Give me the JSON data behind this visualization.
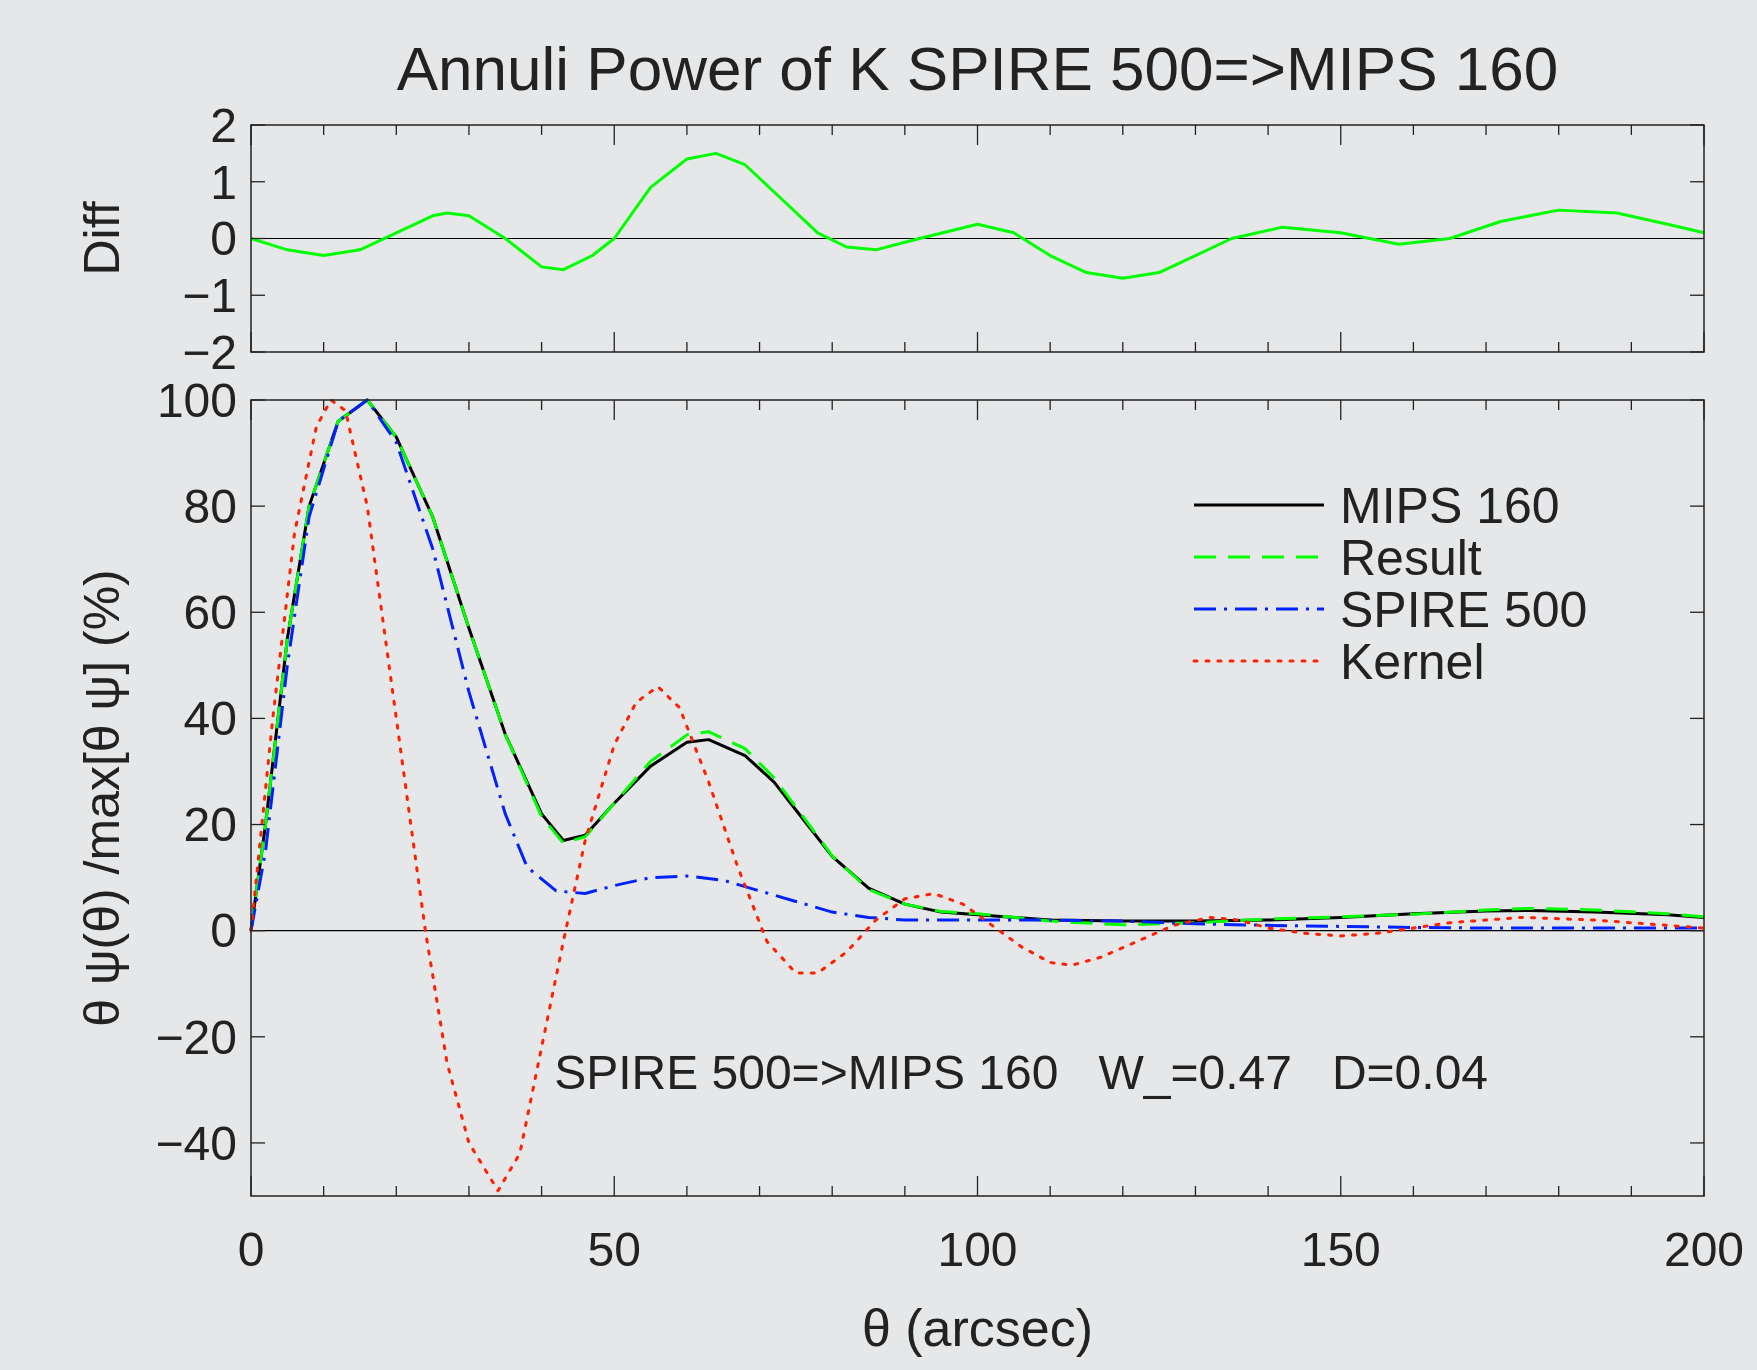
{
  "chart_data": [
    {
      "type": "line",
      "title": "Annuli Power of K SPIRE 500=>MIPS 160",
      "ylabel": "Diff",
      "xlim": [
        0,
        200
      ],
      "xticks": [
        0,
        {
          "value": 10,
          "label": null
        },
        {
          "value": 20,
          "label": null
        },
        {
          "value": 30,
          "label": null
        },
        {
          "value": 40,
          "label": null
        },
        50,
        {
          "value": 60,
          "label": null
        },
        {
          "value": 70,
          "label": null
        },
        {
          "value": 80,
          "label": null
        },
        {
          "value": 90,
          "label": null
        },
        100,
        {
          "value": 110,
          "label": null
        },
        {
          "value": 120,
          "label": null
        },
        {
          "value": 130,
          "label": null
        },
        {
          "value": 140,
          "label": null
        },
        150,
        {
          "value": 160,
          "label": null
        },
        {
          "value": 170,
          "label": null
        },
        {
          "value": 180,
          "label": null
        },
        {
          "value": 190,
          "label": null
        },
        200
      ],
      "ylim": [
        -2,
        2
      ],
      "yticks": [
        {
          "value": -2,
          "label": "−2"
        },
        {
          "value": -1,
          "label": "−1"
        },
        0,
        1,
        2
      ],
      "tick_labels": "y",
      "ref_lines": [
        {
          "axis": "y",
          "value": 0,
          "color": "#000000"
        }
      ],
      "series": [
        {
          "color": "#00ff00",
          "line_style": "solid",
          "x": [
            0,
            5,
            10,
            15,
            20,
            25,
            27,
            30,
            35,
            40,
            43,
            47,
            50,
            55,
            60,
            64,
            68,
            73,
            78,
            82,
            86,
            92,
            100,
            105,
            110,
            115,
            120,
            125,
            130,
            135,
            142,
            150,
            158,
            165,
            172,
            180,
            188,
            195,
            200
          ],
          "values": [
            0,
            -0.2,
            -0.3,
            -0.2,
            0.1,
            0.4,
            0.45,
            0.4,
            0,
            -0.5,
            -0.55,
            -0.3,
            0,
            0.9,
            1.4,
            1.5,
            1.3,
            0.7,
            0.1,
            -0.15,
            -0.2,
            0,
            0.25,
            0.1,
            -0.3,
            -0.6,
            -0.7,
            -0.6,
            -0.3,
            0,
            0.2,
            0.1,
            -0.1,
            0,
            0.3,
            0.5,
            0.45,
            0.25,
            0.1
          ]
        }
      ]
    },
    {
      "type": "line",
      "xlabel": "θ (arcsec)",
      "ylabel": "θ ψ(θ) /max[θ ψ] (%)",
      "xlim": [
        0,
        200
      ],
      "xticks": [
        0,
        {
          "value": 10,
          "label": null
        },
        {
          "value": 20,
          "label": null
        },
        {
          "value": 30,
          "label": null
        },
        {
          "value": 40,
          "label": null
        },
        50,
        {
          "value": 60,
          "label": null
        },
        {
          "value": 70,
          "label": null
        },
        {
          "value": 80,
          "label": null
        },
        {
          "value": 90,
          "label": null
        },
        100,
        {
          "value": 110,
          "label": null
        },
        {
          "value": 120,
          "label": null
        },
        {
          "value": 130,
          "label": null
        },
        {
          "value": 140,
          "label": null
        },
        150,
        {
          "value": 160,
          "label": null
        },
        {
          "value": 170,
          "label": null
        },
        {
          "value": 180,
          "label": null
        },
        {
          "value": 190,
          "label": null
        },
        200
      ],
      "ylim": [
        -50,
        100
      ],
      "yticks": [
        {
          "value": -40,
          "label": "−40"
        },
        {
          "value": -20,
          "label": "−20"
        },
        0,
        20,
        40,
        60,
        80,
        100
      ],
      "legend": "top right",
      "ref_lines": [
        {
          "axis": "y",
          "value": 0,
          "color": "#000000"
        }
      ],
      "annotations": [
        "SPIRE 500=>MIPS 160   W_=0.47   D=0.04"
      ],
      "series": [
        {
          "name": "MIPS 160",
          "color": "#000000",
          "line_style": "solid",
          "x": [
            0,
            2,
            5,
            8,
            12,
            16,
            20,
            25,
            30,
            35,
            40,
            43,
            46,
            50,
            55,
            60,
            63,
            68,
            72,
            76,
            80,
            85,
            90,
            95,
            100,
            110,
            120,
            130,
            140,
            150,
            160,
            170,
            176,
            185,
            195,
            200
          ],
          "values": [
            0,
            20,
            55,
            80,
            96,
            100,
            93,
            78,
            57,
            37,
            22,
            17,
            18,
            24,
            31,
            35.5,
            36,
            33,
            28,
            21,
            14,
            8,
            5,
            3.5,
            3,
            2,
            1.8,
            1.8,
            2,
            2.5,
            3.2,
            3.7,
            3.8,
            3.5,
            3,
            2.5
          ]
        },
        {
          "name": "Result",
          "color": "#00ff00",
          "line_style": "dashed",
          "x": [
            0,
            2,
            5,
            8,
            12,
            16,
            20,
            25,
            30,
            35,
            40,
            43,
            46,
            50,
            55,
            60,
            63,
            68,
            72,
            76,
            80,
            85,
            90,
            95,
            100,
            110,
            120,
            130,
            140,
            150,
            160,
            170,
            176,
            185,
            195,
            200
          ],
          "values": [
            0,
            20,
            55,
            80,
            96,
            100,
            93,
            78,
            57,
            37,
            21.5,
            16.5,
            17.7,
            24,
            31.9,
            36.9,
            37.5,
            34.3,
            28.8,
            21.5,
            14.1,
            7.8,
            5,
            3.6,
            3.2,
            1.8,
            1.1,
            1.5,
            2.2,
            2.6,
            3.1,
            3.9,
            4.2,
            3.9,
            3.2,
            2.6
          ]
        },
        {
          "name": "SPIRE 500",
          "color": "#0022ff",
          "line_style": "dashdot",
          "x": [
            0,
            2,
            5,
            8,
            12,
            16,
            20,
            25,
            30,
            35,
            38,
            42,
            46,
            50,
            55,
            60,
            65,
            70,
            75,
            80,
            85,
            90,
            100,
            110,
            120,
            130,
            140,
            150,
            160,
            170,
            180,
            200
          ],
          "values": [
            0,
            15,
            50,
            78,
            96,
            100,
            92,
            72,
            45,
            22,
            12,
            7.5,
            7,
            8.5,
            10,
            10.3,
            9.5,
            7.5,
            5.5,
            3.5,
            2.5,
            2,
            2,
            2,
            1.8,
            1.3,
            1,
            0.8,
            0.6,
            0.5,
            0.5,
            0.5
          ]
        },
        {
          "name": "Kernel",
          "color": "#ff2000",
          "line_style": "dotted",
          "x": [
            0,
            3,
            6,
            9,
            11,
            13,
            16,
            20,
            24,
            27,
            30,
            34,
            37,
            40,
            43,
            46,
            50,
            53,
            56,
            59,
            63,
            67,
            71,
            75,
            78,
            82,
            86,
            90,
            94,
            98,
            102,
            106,
            110,
            113,
            117,
            122,
            127,
            132,
            136,
            140,
            145,
            150,
            155,
            160,
            165,
            170,
            175,
            185,
            195,
            200
          ],
          "values": [
            0,
            40,
            75,
            95,
            100,
            98,
            80,
            40,
            0,
            -25,
            -40,
            -49,
            -42,
            -22,
            -2,
            17,
            35,
            43,
            46,
            42,
            28,
            12,
            -2,
            -8,
            -8,
            -4,
            2,
            6,
            7,
            5,
            1,
            -3,
            -6,
            -6.5,
            -5,
            -2,
            1,
            2.5,
            2,
            0.5,
            -0.5,
            -1,
            -0.5,
            0.5,
            1.5,
            2,
            2.5,
            2,
            1,
            0.5
          ]
        }
      ]
    }
  ]
}
